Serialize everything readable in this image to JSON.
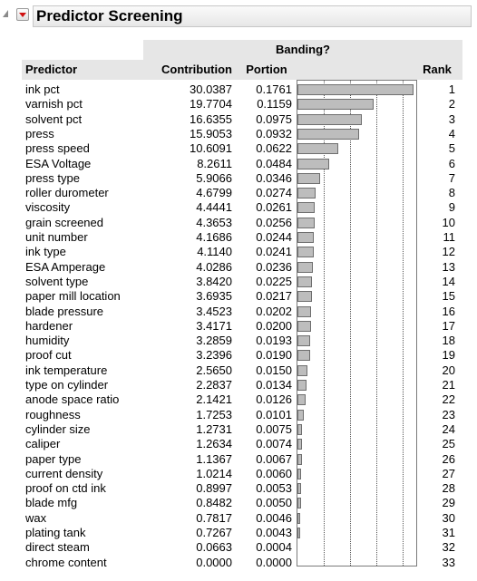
{
  "report": {
    "title": "Predictor Screening"
  },
  "table": {
    "group_header": "Banding?",
    "columns": {
      "predictor": "Predictor",
      "contribution": "Contribution",
      "portion": "Portion",
      "rank": "Rank"
    },
    "rows": [
      {
        "predictor": "ink pct",
        "contribution": "30.0387",
        "portion": "0.1761",
        "rank": "1"
      },
      {
        "predictor": "varnish pct",
        "contribution": "19.7704",
        "portion": "0.1159",
        "rank": "2"
      },
      {
        "predictor": "solvent pct",
        "contribution": "16.6355",
        "portion": "0.0975",
        "rank": "3"
      },
      {
        "predictor": "press",
        "contribution": "15.9053",
        "portion": "0.0932",
        "rank": "4"
      },
      {
        "predictor": "press speed",
        "contribution": "10.6091",
        "portion": "0.0622",
        "rank": "5"
      },
      {
        "predictor": "ESA Voltage",
        "contribution": "8.2611",
        "portion": "0.0484",
        "rank": "6"
      },
      {
        "predictor": "press type",
        "contribution": "5.9066",
        "portion": "0.0346",
        "rank": "7"
      },
      {
        "predictor": "roller durometer",
        "contribution": "4.6799",
        "portion": "0.0274",
        "rank": "8"
      },
      {
        "predictor": "viscosity",
        "contribution": "4.4441",
        "portion": "0.0261",
        "rank": "9"
      },
      {
        "predictor": "grain screened",
        "contribution": "4.3653",
        "portion": "0.0256",
        "rank": "10"
      },
      {
        "predictor": "unit number",
        "contribution": "4.1686",
        "portion": "0.0244",
        "rank": "11"
      },
      {
        "predictor": "ink type",
        "contribution": "4.1140",
        "portion": "0.0241",
        "rank": "12"
      },
      {
        "predictor": "ESA Amperage",
        "contribution": "4.0286",
        "portion": "0.0236",
        "rank": "13"
      },
      {
        "predictor": "solvent type",
        "contribution": "3.8420",
        "portion": "0.0225",
        "rank": "14"
      },
      {
        "predictor": "paper mill location",
        "contribution": "3.6935",
        "portion": "0.0217",
        "rank": "15"
      },
      {
        "predictor": "blade pressure",
        "contribution": "3.4523",
        "portion": "0.0202",
        "rank": "16"
      },
      {
        "predictor": "hardener",
        "contribution": "3.4171",
        "portion": "0.0200",
        "rank": "17"
      },
      {
        "predictor": "humidity",
        "contribution": "3.2859",
        "portion": "0.0193",
        "rank": "18"
      },
      {
        "predictor": "proof cut",
        "contribution": "3.2396",
        "portion": "0.0190",
        "rank": "19"
      },
      {
        "predictor": "ink temperature",
        "contribution": "2.5650",
        "portion": "0.0150",
        "rank": "20"
      },
      {
        "predictor": "type on cylinder",
        "contribution": "2.2837",
        "portion": "0.0134",
        "rank": "21"
      },
      {
        "predictor": "anode space ratio",
        "contribution": "2.1421",
        "portion": "0.0126",
        "rank": "22"
      },
      {
        "predictor": "roughness",
        "contribution": "1.7253",
        "portion": "0.0101",
        "rank": "23"
      },
      {
        "predictor": "cylinder size",
        "contribution": "1.2731",
        "portion": "0.0075",
        "rank": "24"
      },
      {
        "predictor": "caliper",
        "contribution": "1.2634",
        "portion": "0.0074",
        "rank": "25"
      },
      {
        "predictor": "paper type",
        "contribution": "1.1367",
        "portion": "0.0067",
        "rank": "26"
      },
      {
        "predictor": "current density",
        "contribution": "1.0214",
        "portion": "0.0060",
        "rank": "27"
      },
      {
        "predictor": "proof on ctd ink",
        "contribution": "0.8997",
        "portion": "0.0053",
        "rank": "28"
      },
      {
        "predictor": "blade mfg",
        "contribution": "0.8482",
        "portion": "0.0050",
        "rank": "29"
      },
      {
        "predictor": "wax",
        "contribution": "0.7817",
        "portion": "0.0046",
        "rank": "30"
      },
      {
        "predictor": "plating tank",
        "contribution": "0.7267",
        "portion": "0.0043",
        "rank": "31"
      },
      {
        "predictor": "direct steam",
        "contribution": "0.0663",
        "portion": "0.0004",
        "rank": "32"
      },
      {
        "predictor": "chrome content",
        "contribution": "0.0000",
        "portion": "0.0000",
        "rank": "33"
      }
    ]
  },
  "portion_bar_scale": {
    "max": 0.18,
    "reference_lines": [
      0.04,
      0.08,
      0.12,
      0.16
    ]
  },
  "colors": {
    "bar_fill": "#bdbdbd",
    "header_bg": "#e6e6e6",
    "hotspot_triangle": "#d01010"
  },
  "icons": {
    "disclosure": "disclosure-triangle-icon",
    "hotspot": "red-triangle-menu-icon"
  }
}
